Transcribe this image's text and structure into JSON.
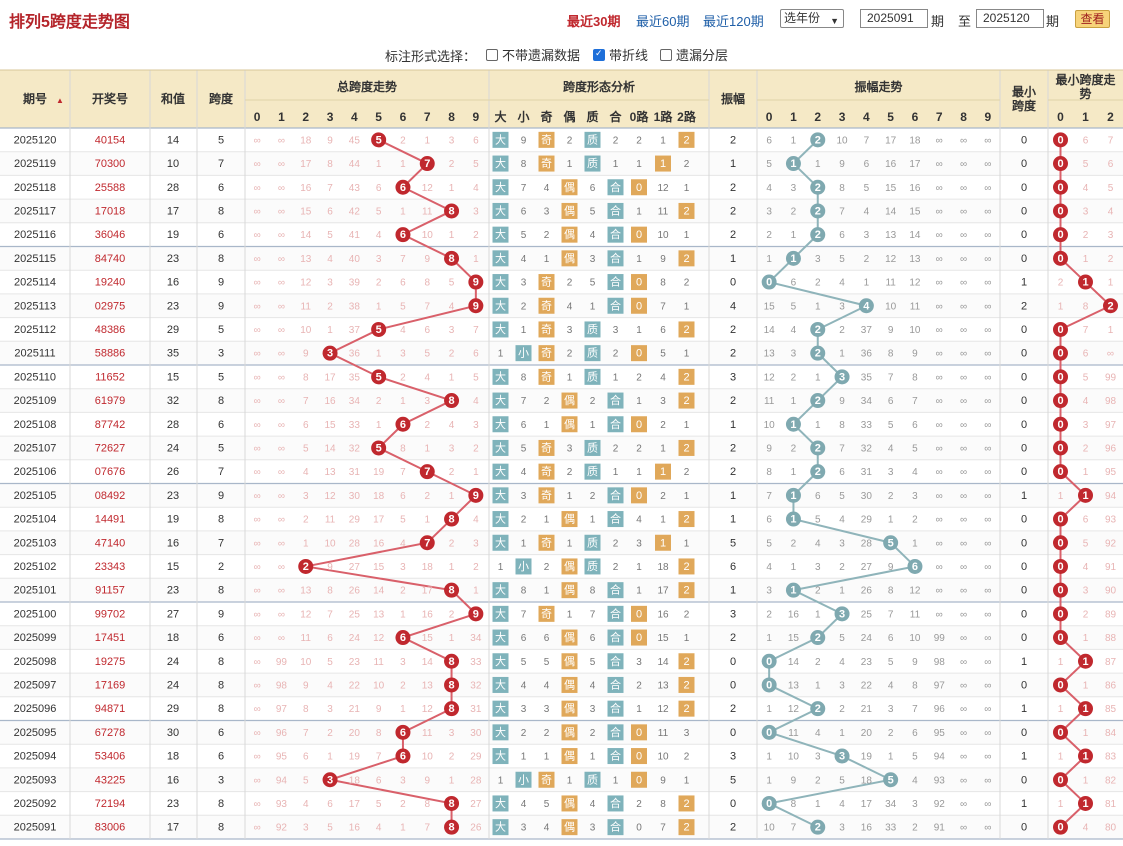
{
  "header": {
    "title": "排列5跨度走势图",
    "links": [
      "最近30期",
      "最近60期",
      "最近120期"
    ],
    "year_select": "选年份",
    "from_period": "2025091",
    "period_unit": "期",
    "to_label": "至",
    "to_period": "2025120",
    "view_button": "查看"
  },
  "options": {
    "label": "标注形式选择：",
    "items": [
      {
        "text": "不带遗漏数据",
        "checked": false
      },
      {
        "text": "带折线",
        "checked": true
      },
      {
        "text": "遗漏分层",
        "checked": false
      }
    ]
  },
  "columns": {
    "issue": "期号",
    "draw": "开奖号",
    "sum": "和值",
    "span": "跨度",
    "trend": "总跨度走势",
    "shape": "跨度形态分析",
    "amp": "振幅",
    "amptrend": "振幅走势",
    "minspan": "最小跨度",
    "mintrend": "最小跨度走势",
    "digits": [
      "0",
      "1",
      "2",
      "3",
      "4",
      "5",
      "6",
      "7",
      "8",
      "9"
    ],
    "shape_heads": [
      "大",
      "小",
      "奇",
      "偶",
      "质",
      "合",
      "0路",
      "1路",
      "2路"
    ],
    "min_digits": [
      "0",
      "1",
      "2"
    ]
  },
  "chart_data": {
    "type": "table",
    "issues": [
      "2025120",
      "2025119",
      "2025118",
      "2025117",
      "2025116",
      "2025115",
      "2025114",
      "2025113",
      "2025112",
      "2025111",
      "2025110",
      "2025109",
      "2025108",
      "2025107",
      "2025106",
      "2025105",
      "2025104",
      "2025103",
      "2025102",
      "2025101",
      "2025100",
      "2025099",
      "2025098",
      "2025097",
      "2025096",
      "2025095",
      "2025094",
      "2025093",
      "2025092",
      "2025091"
    ],
    "draws": [
      "40154",
      "70300",
      "25588",
      "17018",
      "36046",
      "84740",
      "19240",
      "02975",
      "48386",
      "58886",
      "11652",
      "61979",
      "87742",
      "72627",
      "07676",
      "08492",
      "14491",
      "47140",
      "23343",
      "91157",
      "99702",
      "17451",
      "19275",
      "17169",
      "94871",
      "67278",
      "53406",
      "43225",
      "72194",
      "83006"
    ],
    "sums": [
      14,
      10,
      28,
      17,
      19,
      23,
      16,
      23,
      29,
      35,
      15,
      32,
      28,
      24,
      26,
      23,
      19,
      16,
      15,
      23,
      27,
      18,
      24,
      24,
      29,
      30,
      18,
      16,
      23,
      17
    ],
    "spans": [
      5,
      7,
      6,
      8,
      6,
      8,
      9,
      9,
      5,
      3,
      5,
      8,
      6,
      5,
      7,
      9,
      8,
      7,
      2,
      8,
      9,
      6,
      8,
      8,
      8,
      6,
      6,
      3,
      8,
      8
    ],
    "amplitudes": [
      2,
      1,
      2,
      2,
      2,
      1,
      0,
      4,
      2,
      2,
      3,
      2,
      1,
      2,
      2,
      1,
      1,
      5,
      6,
      1,
      3,
      2,
      0,
      0,
      2,
      0,
      3,
      5,
      0,
      2
    ],
    "min_spans": [
      0,
      0,
      0,
      0,
      0,
      0,
      1,
      2,
      0,
      0,
      0,
      0,
      0,
      0,
      0,
      1,
      0,
      0,
      0,
      0,
      0,
      0,
      1,
      0,
      1,
      0,
      1,
      0,
      1,
      0
    ],
    "span_missing": [
      [
        "∞",
        "∞",
        "18",
        "9",
        "45",
        "",
        "2",
        "1",
        "3",
        "6"
      ],
      [
        "∞",
        "∞",
        "17",
        "8",
        "44",
        "1",
        "1",
        "",
        "2",
        "5"
      ],
      [
        "∞",
        "∞",
        "16",
        "7",
        "43",
        "6",
        "",
        "12",
        "1",
        "4"
      ],
      [
        "∞",
        "∞",
        "15",
        "6",
        "42",
        "5",
        "1",
        "11",
        "",
        "3"
      ],
      [
        "∞",
        "∞",
        "14",
        "5",
        "41",
        "4",
        "",
        "10",
        "1",
        "2"
      ],
      [
        "∞",
        "∞",
        "13",
        "4",
        "40",
        "3",
        "7",
        "9",
        "",
        "1"
      ],
      [
        "∞",
        "∞",
        "12",
        "3",
        "39",
        "2",
        "6",
        "8",
        "5",
        ""
      ],
      [
        "∞",
        "∞",
        "11",
        "2",
        "38",
        "1",
        "5",
        "7",
        "4",
        ""
      ],
      [
        "∞",
        "∞",
        "10",
        "1",
        "37",
        "",
        "4",
        "6",
        "3",
        "7"
      ],
      [
        "∞",
        "∞",
        "9",
        "",
        "36",
        "1",
        "3",
        "5",
        "2",
        "6"
      ],
      [
        "∞",
        "∞",
        "8",
        "17",
        "35",
        "",
        "2",
        "4",
        "1",
        "5"
      ],
      [
        "∞",
        "∞",
        "7",
        "16",
        "34",
        "2",
        "1",
        "3",
        "",
        "4"
      ],
      [
        "∞",
        "∞",
        "6",
        "15",
        "33",
        "1",
        "",
        "2",
        "4",
        "3"
      ],
      [
        "∞",
        "∞",
        "5",
        "14",
        "32",
        "",
        "8",
        "1",
        "3",
        "2"
      ],
      [
        "∞",
        "∞",
        "4",
        "13",
        "31",
        "19",
        "7",
        "",
        "2",
        "1"
      ],
      [
        "∞",
        "∞",
        "3",
        "12",
        "30",
        "18",
        "6",
        "2",
        "1",
        ""
      ],
      [
        "∞",
        "∞",
        "2",
        "11",
        "29",
        "17",
        "5",
        "1",
        "",
        "4"
      ],
      [
        "∞",
        "∞",
        "1",
        "10",
        "28",
        "16",
        "4",
        "",
        "2",
        "3"
      ],
      [
        "∞",
        "∞",
        "",
        "9",
        "27",
        "15",
        "3",
        "18",
        "1",
        "2"
      ],
      [
        "∞",
        "∞",
        "13",
        "8",
        "26",
        "14",
        "2",
        "17",
        "",
        "1"
      ],
      [
        "∞",
        "∞",
        "12",
        "7",
        "25",
        "13",
        "1",
        "16",
        "2",
        ""
      ],
      [
        "∞",
        "∞",
        "11",
        "6",
        "24",
        "12",
        "",
        "15",
        "1",
        "34"
      ],
      [
        "∞",
        "99",
        "10",
        "5",
        "23",
        "11",
        "3",
        "14",
        "",
        "33"
      ],
      [
        "∞",
        "98",
        "9",
        "4",
        "22",
        "10",
        "2",
        "13",
        "",
        "32"
      ],
      [
        "∞",
        "97",
        "8",
        "3",
        "21",
        "9",
        "1",
        "12",
        "",
        "31"
      ],
      [
        "∞",
        "96",
        "7",
        "2",
        "20",
        "8",
        "",
        "11",
        "3",
        "30"
      ],
      [
        "∞",
        "95",
        "6",
        "1",
        "19",
        "7",
        "",
        "10",
        "2",
        "29"
      ],
      [
        "∞",
        "94",
        "5",
        "",
        "18",
        "6",
        "3",
        "9",
        "1",
        "28"
      ],
      [
        "∞",
        "93",
        "4",
        "6",
        "17",
        "5",
        "2",
        "8",
        "",
        "27"
      ],
      [
        "∞",
        "92",
        "3",
        "5",
        "16",
        "4",
        "1",
        "7",
        "",
        "26"
      ]
    ],
    "shape_cells": [
      [
        "大",
        "9",
        "奇",
        "2",
        "质",
        "2",
        "2",
        "1",
        "2"
      ],
      [
        "大",
        "8",
        "奇",
        "1",
        "质",
        "1",
        "1",
        "1",
        "2"
      ],
      [
        "大",
        "7",
        "4",
        "偶",
        "6",
        "合",
        "0",
        "12",
        "1"
      ],
      [
        "大",
        "6",
        "3",
        "偶",
        "5",
        "合",
        "1",
        "11",
        "2"
      ],
      [
        "大",
        "5",
        "2",
        "偶",
        "4",
        "合",
        "0",
        "10",
        "1"
      ],
      [
        "大",
        "4",
        "1",
        "偶",
        "3",
        "合",
        "1",
        "9",
        "2"
      ],
      [
        "大",
        "3",
        "奇",
        "2",
        "5",
        "合",
        "0",
        "8",
        "2"
      ],
      [
        "大",
        "2",
        "奇",
        "4",
        "1",
        "合",
        "0",
        "7",
        "1"
      ],
      [
        "大",
        "1",
        "奇",
        "3",
        "质",
        "3",
        "1",
        "6",
        "2"
      ],
      [
        "1",
        "小",
        "奇",
        "2",
        "质",
        "2",
        "0",
        "5",
        "1"
      ],
      [
        "大",
        "8",
        "奇",
        "1",
        "质",
        "1",
        "2",
        "4",
        "2"
      ],
      [
        "大",
        "7",
        "2",
        "偶",
        "2",
        "合",
        "1",
        "3",
        "2"
      ],
      [
        "大",
        "6",
        "1",
        "偶",
        "1",
        "合",
        "0",
        "2",
        "1"
      ],
      [
        "大",
        "5",
        "奇",
        "3",
        "质",
        "2",
        "2",
        "1",
        "2"
      ],
      [
        "大",
        "4",
        "奇",
        "2",
        "质",
        "1",
        "1",
        "1",
        "2"
      ],
      [
        "大",
        "3",
        "奇",
        "1",
        "2",
        "合",
        "0",
        "2",
        "1"
      ],
      [
        "大",
        "2",
        "1",
        "偶",
        "1",
        "合",
        "4",
        "1",
        "2"
      ],
      [
        "大",
        "1",
        "奇",
        "1",
        "质",
        "2",
        "3",
        "1",
        "1"
      ],
      [
        "1",
        "小",
        "2",
        "偶",
        "质",
        "2",
        "1",
        "18",
        "2"
      ],
      [
        "大",
        "8",
        "1",
        "偶",
        "8",
        "合",
        "1",
        "17",
        "2"
      ],
      [
        "大",
        "7",
        "奇",
        "1",
        "7",
        "合",
        "0",
        "16",
        "2"
      ],
      [
        "大",
        "6",
        "6",
        "偶",
        "6",
        "合",
        "0",
        "15",
        "1"
      ],
      [
        "大",
        "5",
        "5",
        "偶",
        "5",
        "合",
        "3",
        "14",
        "2"
      ],
      [
        "大",
        "4",
        "4",
        "偶",
        "4",
        "合",
        "2",
        "13",
        "2"
      ],
      [
        "大",
        "3",
        "3",
        "偶",
        "3",
        "合",
        "1",
        "12",
        "2"
      ],
      [
        "大",
        "2",
        "2",
        "偶",
        "2",
        "合",
        "0",
        "11",
        "3"
      ],
      [
        "大",
        "1",
        "1",
        "偶",
        "1",
        "合",
        "0",
        "10",
        "2"
      ],
      [
        "1",
        "小",
        "奇",
        "1",
        "质",
        "1",
        "0",
        "9",
        "1"
      ],
      [
        "大",
        "4",
        "5",
        "偶",
        "4",
        "合",
        "2",
        "8",
        "2"
      ],
      [
        "大",
        "3",
        "4",
        "偶",
        "3",
        "合",
        "0",
        "7",
        "2"
      ]
    ],
    "shape_hits": [
      [
        0,
        2,
        4,
        8
      ],
      [
        0,
        2,
        4,
        7
      ],
      [
        0,
        3,
        5,
        6
      ],
      [
        0,
        3,
        5,
        8
      ],
      [
        0,
        3,
        5,
        6
      ],
      [
        0,
        3,
        5,
        8
      ],
      [
        0,
        2,
        5,
        6
      ],
      [
        0,
        2,
        5,
        6
      ],
      [
        0,
        2,
        4,
        8
      ],
      [
        1,
        2,
        4,
        6
      ],
      [
        0,
        2,
        4,
        8
      ],
      [
        0,
        3,
        5,
        8
      ],
      [
        0,
        3,
        5,
        6
      ],
      [
        0,
        2,
        4,
        8
      ],
      [
        0,
        2,
        4,
        7
      ],
      [
        0,
        2,
        5,
        6
      ],
      [
        0,
        3,
        5,
        8
      ],
      [
        0,
        2,
        4,
        7
      ],
      [
        1,
        3,
        4,
        8
      ],
      [
        0,
        3,
        5,
        8
      ],
      [
        0,
        2,
        5,
        6
      ],
      [
        0,
        3,
        5,
        6
      ],
      [
        0,
        3,
        5,
        8
      ],
      [
        0,
        3,
        5,
        8
      ],
      [
        0,
        3,
        5,
        8
      ],
      [
        0,
        3,
        5,
        6
      ],
      [
        0,
        3,
        5,
        6
      ],
      [
        1,
        2,
        4,
        6
      ],
      [
        0,
        3,
        5,
        8
      ],
      [
        0,
        3,
        5,
        8
      ]
    ],
    "amp_missing": [
      [
        "6",
        "1",
        "",
        "10",
        "7",
        "17",
        "18",
        "∞",
        "∞",
        "∞"
      ],
      [
        "5",
        "",
        "1",
        "9",
        "6",
        "16",
        "17",
        "∞",
        "∞",
        "∞"
      ],
      [
        "4",
        "3",
        "",
        "8",
        "5",
        "15",
        "16",
        "∞",
        "∞",
        "∞"
      ],
      [
        "3",
        "2",
        "",
        "7",
        "4",
        "14",
        "15",
        "∞",
        "∞",
        "∞"
      ],
      [
        "2",
        "1",
        "",
        "6",
        "3",
        "13",
        "14",
        "∞",
        "∞",
        "∞"
      ],
      [
        "1",
        "",
        "3",
        "5",
        "2",
        "12",
        "13",
        "∞",
        "∞",
        "∞"
      ],
      [
        "",
        "6",
        "2",
        "4",
        "1",
        "11",
        "12",
        "∞",
        "∞",
        "∞"
      ],
      [
        "15",
        "5",
        "1",
        "3",
        "",
        "10",
        "11",
        "∞",
        "∞",
        "∞"
      ],
      [
        "14",
        "4",
        "",
        "2",
        "37",
        "9",
        "10",
        "∞",
        "∞",
        "∞"
      ],
      [
        "13",
        "3",
        "",
        "1",
        "36",
        "8",
        "9",
        "∞",
        "∞",
        "∞"
      ],
      [
        "12",
        "2",
        "1",
        "",
        "35",
        "7",
        "8",
        "∞",
        "∞",
        "∞"
      ],
      [
        "11",
        "1",
        "",
        "9",
        "34",
        "6",
        "7",
        "∞",
        "∞",
        "∞"
      ],
      [
        "10",
        "",
        "1",
        "8",
        "33",
        "5",
        "6",
        "∞",
        "∞",
        "∞"
      ],
      [
        "9",
        "2",
        "",
        "7",
        "32",
        "4",
        "5",
        "∞",
        "∞",
        "∞"
      ],
      [
        "8",
        "1",
        "",
        "6",
        "31",
        "3",
        "4",
        "∞",
        "∞",
        "∞"
      ],
      [
        "7",
        "",
        "6",
        "5",
        "30",
        "2",
        "3",
        "∞",
        "∞",
        "∞"
      ],
      [
        "6",
        "",
        "5",
        "4",
        "29",
        "1",
        "2",
        "∞",
        "∞",
        "∞"
      ],
      [
        "5",
        "2",
        "4",
        "3",
        "28",
        "",
        "1",
        "∞",
        "∞",
        "∞"
      ],
      [
        "4",
        "1",
        "3",
        "2",
        "27",
        "9",
        "",
        "∞",
        "∞",
        "∞"
      ],
      [
        "3",
        "",
        "2",
        "1",
        "26",
        "8",
        "12",
        "∞",
        "∞",
        "∞"
      ],
      [
        "2",
        "16",
        "1",
        "",
        "25",
        "7",
        "11",
        "∞",
        "∞",
        "∞"
      ],
      [
        "1",
        "15",
        "",
        "5",
        "24",
        "6",
        "10",
        "99",
        "∞",
        "∞"
      ],
      [
        "",
        "14",
        "2",
        "4",
        "23",
        "5",
        "9",
        "98",
        "∞",
        "∞"
      ],
      [
        "",
        "13",
        "1",
        "3",
        "22",
        "4",
        "8",
        "97",
        "∞",
        "∞"
      ],
      [
        "1",
        "12",
        "",
        "2",
        "21",
        "3",
        "7",
        "96",
        "∞",
        "∞"
      ],
      [
        "",
        "11",
        "4",
        "1",
        "20",
        "2",
        "6",
        "95",
        "∞",
        "∞"
      ],
      [
        "1",
        "10",
        "3",
        "",
        "19",
        "1",
        "5",
        "94",
        "∞",
        "∞"
      ],
      [
        "1",
        "9",
        "2",
        "5",
        "18",
        "",
        "4",
        "93",
        "∞",
        "∞"
      ],
      [
        "",
        "8",
        "1",
        "4",
        "17",
        "34",
        "3",
        "92",
        "∞",
        "∞"
      ],
      [
        "10",
        "7",
        "",
        "3",
        "16",
        "33",
        "2",
        "91",
        "∞",
        "∞"
      ]
    ],
    "min_missing": [
      [
        "",
        "6",
        "7"
      ],
      [
        "",
        "5",
        "6"
      ],
      [
        "",
        "4",
        "5"
      ],
      [
        "",
        "3",
        "4"
      ],
      [
        "",
        "2",
        "3"
      ],
      [
        "",
        "1",
        "2"
      ],
      [
        "2",
        "",
        "1"
      ],
      [
        "1",
        "8",
        ""
      ],
      [
        "",
        "7",
        "1"
      ],
      [
        "",
        "6",
        "∞"
      ],
      [
        "",
        "5",
        "99"
      ],
      [
        "",
        "4",
        "98"
      ],
      [
        "",
        "3",
        "97"
      ],
      [
        "",
        "2",
        "96"
      ],
      [
        "",
        "1",
        "95"
      ],
      [
        "1",
        "",
        "94"
      ],
      [
        "",
        "6",
        "93"
      ],
      [
        "",
        "5",
        "92"
      ],
      [
        "",
        "4",
        "91"
      ],
      [
        "",
        "3",
        "90"
      ],
      [
        "",
        "2",
        "89"
      ],
      [
        "",
        "1",
        "88"
      ],
      [
        "1",
        "",
        "87"
      ],
      [
        "",
        "1",
        "86"
      ],
      [
        "1",
        "",
        "85"
      ],
      [
        "",
        "1",
        "84"
      ],
      [
        "1",
        "",
        "83"
      ],
      [
        "",
        "1",
        "82"
      ],
      [
        "1",
        "",
        "81"
      ],
      [
        "",
        "4",
        "80"
      ]
    ]
  }
}
